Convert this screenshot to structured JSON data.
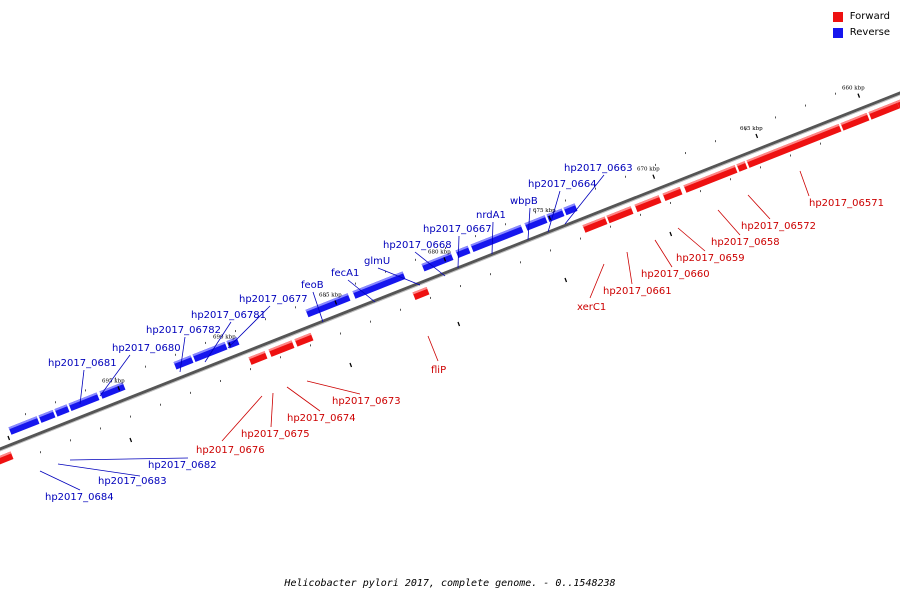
{
  "legend": {
    "forward_label": "Forward",
    "reverse_label": "Reverse"
  },
  "colors": {
    "forward": "#ee1111",
    "forward_top": "#ff8888",
    "reverse": "#1616ee",
    "reverse_top": "#8a8aff",
    "axis": "#555555"
  },
  "caption": "Helicobacter pylori 2017, complete genome. - 0..1548238",
  "ticks": [
    "660 kbp",
    "665 kbp",
    "670 kbp",
    "675 kbp",
    "680 kbp",
    "685 kbp",
    "690 kbp",
    "695 kbp"
  ],
  "forward_genes": [
    "hp2017_06571",
    "hp2017_06572",
    "hp2017_0658",
    "hp2017_0659",
    "hp2017_0660",
    "hp2017_0661",
    "xerC1",
    "fliP",
    "hp2017_0673",
    "hp2017_0674",
    "hp2017_0675",
    "hp2017_0676"
  ],
  "reverse_genes": [
    "hp2017_0663",
    "hp2017_0664",
    "wbpB",
    "nrdA1",
    "hp2017_0667",
    "hp2017_0668",
    "glmU",
    "fecA1",
    "feoB",
    "hp2017_0677",
    "hp2017_06781",
    "hp2017_06782",
    "hp2017_0680",
    "hp2017_0681",
    "hp2017_0682",
    "hp2017_0683",
    "hp2017_0684"
  ]
}
